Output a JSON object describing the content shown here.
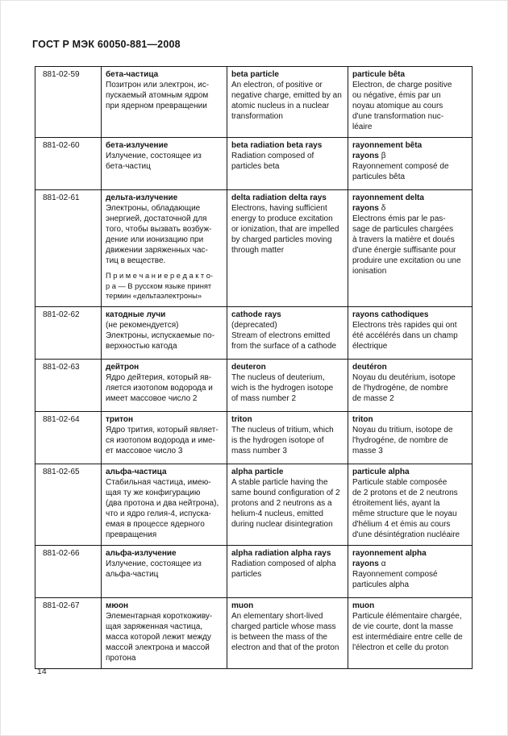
{
  "document": {
    "header": "ГОСТ Р МЭК 60050-881—2008",
    "page_number": "14"
  },
  "table": {
    "rows": [
      {
        "id": "881-02-59",
        "ru": {
          "term": "бета-частица",
          "body": "Позитрон или электрон, ис-\nпускаемый атомным ядром\nпри ядерном превращении"
        },
        "en": {
          "term": "beta particle",
          "body": "An electron, of positive or\nnegative charge, emitted by an\natomic nucleus in a nuclear\ntransformation"
        },
        "fr": {
          "term": "particule bêta",
          "body": "Electron, de charge positive\nou négative, émis par un\nnoyau atomique au cours\nd'une transformation nuc-\nléaire"
        }
      },
      {
        "id": "881-02-60",
        "ru": {
          "term": "бета-излучение",
          "body": "Излучение, состоящее из\nбета-частиц"
        },
        "en": {
          "term": "beta radiation beta rays",
          "body": "Radiation composed of\nparticles beta"
        },
        "fr": {
          "term": "rayonnement bêta",
          "sub_label": "rayons",
          "sub_symbol": "β",
          "body": "Rayonnement composé de\nparticules bêta"
        }
      },
      {
        "id": "881-02-61",
        "ru": {
          "term": "дельта-излучение",
          "body": "Электроны, обладающие\nэнергией, достаточной для\nтого, чтобы вызвать возбуж-\nдение или ионизацию при\nдвижении заряженных час-\nтиц в веществе.",
          "editor_note": "П р и м е ч а н и е  р е д а к т о-\nр а — В русском языке принят\nтермин «дельтаэлектроны»"
        },
        "en": {
          "term": "delta radiation delta rays",
          "body": "Electrons, having sufficient\nenergy to produce excitation\nor ionization, that are impelled\nby charged particles moving\nthrough matter"
        },
        "fr": {
          "term": "rayonnement delta",
          "sub_label": "rayons",
          "sub_symbol": "δ",
          "body": "Electrons émis par le pas-\nsage de particules chargées\nà travers la matière et doués\nd'une énergie suffisante pour\nproduire une excitation ou une\nionisation"
        }
      },
      {
        "id": "881-02-62",
        "ru": {
          "term": "катодные лучи",
          "note": "(не рекомендуется)",
          "body": "Электроны, испускаемые по-\nверхностью катода"
        },
        "en": {
          "term": "cathode rays",
          "note": "(deprecated)",
          "body": "Stream of electrons emitted\nfrom the surface of a cathode"
        },
        "fr": {
          "term": "rayons cathodiques",
          "body": "Electrons très rapides qui ont\nété accélérés dans un champ\nélectrique"
        }
      },
      {
        "id": "881-02-63",
        "ru": {
          "term": "дейтрон",
          "body": "Ядро дейтерия, который яв-\nляется изотопом водорода и\nимеет массовое число 2"
        },
        "en": {
          "term": "deuteron",
          "body": "The nucleus of deuterium,\nwich is the hydrogen isotope\nof mass number 2"
        },
        "fr": {
          "term": "deutéron",
          "body": "Noyau du deutérium, isotope\nde l'hydrogéne, de nombre\nde masse 2"
        }
      },
      {
        "id": "881-02-64",
        "ru": {
          "term": "тритон",
          "body": "Ядро трития, который являет-\nся изотопом водорода и име-\nет массовое число 3"
        },
        "en": {
          "term": "triton",
          "body": "The nucleus of tritium, which\nis the hydrogen isotope of\nmass number 3"
        },
        "fr": {
          "term": "triton",
          "body": "Noyau du tritium, isotope de\nl'hydrogéne, de nombre de\nmasse 3"
        }
      },
      {
        "id": "881-02-65",
        "ru": {
          "term": "альфа-частица",
          "body": "Стабильная частица, имею-\nщая ту же конфигурацию\n(два протона и два нейтрона),\nчто и ядро гелия-4, испуска-\nемая в процессе ядерного\nпревращения"
        },
        "en": {
          "term": "alpha particle",
          "body": "A stable particle having the\nsame bound configuration of 2\nprotons and 2 neutrons as a\nhelium-4 nucleus, emitted\nduring nuclear disintegration"
        },
        "fr": {
          "term": "particule alpha",
          "body": "Particule stable composée\nde 2 protons et de 2 neutrons\nétroitement liés, ayant la\nmême structure que le noyau\nd'hélium 4 et émis au cours\nd'une désintégration nucléaire"
        }
      },
      {
        "id": "881-02-66",
        "ru": {
          "term": "альфа-излучение",
          "body": "Излучение, состоящее из\nальфа-частиц"
        },
        "en": {
          "term": "alpha radiation alpha rays",
          "body": "Radiation composed of alpha\nparticles"
        },
        "fr": {
          "term": "rayonnement alpha",
          "sub_label": "rayons",
          "sub_symbol": "α",
          "body": "Rayonnement composé\nparticules alpha"
        }
      },
      {
        "id": "881-02-67",
        "ru": {
          "term": "мюон",
          "body": "Элементарная короткоживу-\nщая заряженная частица,\nмасса которой лежит между\nмассой электрона и массой\nпротона"
        },
        "en": {
          "term": "muon",
          "body": "An elementary short-lived\ncharged particle whose mass\nis between the mass of the\nelectron and that of the proton"
        },
        "fr": {
          "term": "muon",
          "body": "Particule élémentaire chargée,\nde vie courte, dont la masse\nest intermédiaire entre celle de\nl'électron et celle du proton"
        }
      }
    ]
  }
}
